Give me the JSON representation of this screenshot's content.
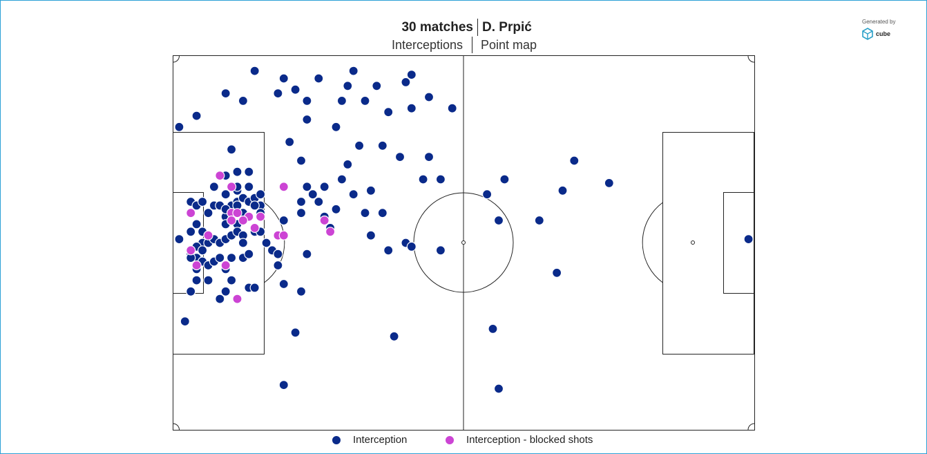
{
  "header": {
    "matches": "30 matches",
    "player": "D. Prpić",
    "metric": "Interceptions",
    "view": "Point map"
  },
  "branding": {
    "generated_by": "Generated by",
    "brand_name": "cube"
  },
  "colors": {
    "interception": "#0a2a8a",
    "blocked": "#cc44d4",
    "frame": "#2a9fd6",
    "pitch_line": "#222222"
  },
  "chart_data": {
    "type": "scatter",
    "title": "",
    "xlabel": "",
    "ylabel": "",
    "xlim": [
      0,
      100
    ],
    "ylim": [
      0,
      100
    ],
    "series": [
      {
        "name": "Interception",
        "color": "#0a2a8a",
        "points": [
          [
            14,
            96
          ],
          [
            19,
            94
          ],
          [
            25,
            94
          ],
          [
            31,
            96
          ],
          [
            30,
            92
          ],
          [
            35,
            92
          ],
          [
            41,
            95
          ],
          [
            40,
            93
          ],
          [
            44,
            89
          ],
          [
            48,
            86
          ],
          [
            9,
            90
          ],
          [
            12,
            88
          ],
          [
            18,
            90
          ],
          [
            21,
            91
          ],
          [
            23,
            88
          ],
          [
            29,
            88
          ],
          [
            33,
            88
          ],
          [
            37,
            85
          ],
          [
            41,
            86
          ],
          [
            1,
            81
          ],
          [
            4,
            84
          ],
          [
            10,
            75
          ],
          [
            20,
            77
          ],
          [
            22,
            72
          ],
          [
            23,
            83
          ],
          [
            28,
            81
          ],
          [
            32,
            76
          ],
          [
            30,
            71
          ],
          [
            36,
            76
          ],
          [
            39,
            73
          ],
          [
            44,
            73
          ],
          [
            7,
            65
          ],
          [
            9,
            68
          ],
          [
            11,
            69
          ],
          [
            11,
            64
          ],
          [
            13,
            69
          ],
          [
            11,
            65
          ],
          [
            13,
            65
          ],
          [
            9,
            63
          ],
          [
            10,
            60
          ],
          [
            11,
            61
          ],
          [
            12,
            62
          ],
          [
            13,
            61
          ],
          [
            14,
            62
          ],
          [
            15,
            63
          ],
          [
            9,
            57
          ],
          [
            11,
            58
          ],
          [
            12,
            58
          ],
          [
            13,
            57
          ],
          [
            9,
            55
          ],
          [
            10,
            56
          ],
          [
            11,
            55
          ],
          [
            14,
            53
          ],
          [
            15,
            60
          ],
          [
            3,
            61
          ],
          [
            4,
            60
          ],
          [
            5,
            61
          ],
          [
            6,
            58
          ],
          [
            7,
            60
          ],
          [
            8,
            60
          ],
          [
            9,
            59
          ],
          [
            10,
            58
          ],
          [
            11,
            60
          ],
          [
            13,
            57
          ],
          [
            14,
            60
          ],
          [
            15,
            58
          ],
          [
            4,
            55
          ],
          [
            5,
            53
          ],
          [
            6,
            52
          ],
          [
            3,
            53
          ],
          [
            5,
            50
          ],
          [
            4,
            49
          ],
          [
            6,
            50
          ],
          [
            7,
            51
          ],
          [
            8,
            50
          ],
          [
            3,
            47
          ],
          [
            4,
            46
          ],
          [
            5,
            48
          ],
          [
            9,
            51
          ],
          [
            10,
            52
          ],
          [
            11,
            53
          ],
          [
            12,
            52
          ],
          [
            12,
            50
          ],
          [
            15,
            53
          ],
          [
            16,
            50
          ],
          [
            3,
            46
          ],
          [
            4,
            43
          ],
          [
            5,
            45
          ],
          [
            6,
            40
          ],
          [
            3,
            37
          ],
          [
            4,
            40
          ],
          [
            6,
            44
          ],
          [
            7,
            45
          ],
          [
            8,
            46
          ],
          [
            10,
            46
          ],
          [
            9,
            43
          ],
          [
            12,
            46
          ],
          [
            13,
            47
          ],
          [
            10,
            40
          ],
          [
            9,
            37
          ],
          [
            8,
            35
          ],
          [
            13,
            38
          ],
          [
            14,
            38
          ],
          [
            17,
            48
          ],
          [
            18,
            47
          ],
          [
            18,
            44
          ],
          [
            19,
            39
          ],
          [
            22,
            37
          ],
          [
            23,
            47
          ],
          [
            19,
            56
          ],
          [
            22,
            58
          ],
          [
            22,
            61
          ],
          [
            24,
            63
          ],
          [
            26,
            65
          ],
          [
            23,
            65
          ],
          [
            25,
            61
          ],
          [
            26,
            57
          ],
          [
            27,
            54
          ],
          [
            28,
            59
          ],
          [
            29,
            67
          ],
          [
            31,
            63
          ],
          [
            33,
            58
          ],
          [
            34,
            64
          ],
          [
            34,
            52
          ],
          [
            36,
            58
          ],
          [
            43,
            67
          ],
          [
            46,
            67
          ],
          [
            37,
            48
          ],
          [
            40,
            50
          ],
          [
            41,
            49
          ],
          [
            46,
            48
          ],
          [
            56,
            56
          ],
          [
            63,
            56
          ],
          [
            54,
            63
          ],
          [
            57,
            67
          ],
          [
            67,
            64
          ],
          [
            69,
            72
          ],
          [
            75,
            66
          ],
          [
            99,
            51
          ],
          [
            1,
            51
          ],
          [
            2,
            29
          ],
          [
            21,
            26
          ],
          [
            38,
            25
          ],
          [
            55,
            27
          ],
          [
            19,
            12
          ],
          [
            56,
            11
          ],
          [
            66,
            42
          ]
        ]
      },
      {
        "name": "Interception - blocked shots",
        "color": "#cc44d4",
        "points": [
          [
            8,
            68
          ],
          [
            10,
            65
          ],
          [
            19,
            65
          ],
          [
            26,
            56
          ],
          [
            10,
            58
          ],
          [
            11,
            58
          ],
          [
            13,
            57
          ],
          [
            15,
            57
          ],
          [
            10,
            56
          ],
          [
            12,
            56
          ],
          [
            14,
            54
          ],
          [
            3,
            58
          ],
          [
            6,
            52
          ],
          [
            3,
            48
          ],
          [
            4,
            44
          ],
          [
            9,
            44
          ],
          [
            18,
            52
          ],
          [
            19,
            52
          ],
          [
            27,
            53
          ],
          [
            11,
            35
          ]
        ]
      }
    ]
  },
  "legend": {
    "items": [
      {
        "label": "Interception",
        "color": "#0a2a8a"
      },
      {
        "label": "Interception - blocked shots",
        "color": "#cc44d4"
      }
    ]
  }
}
